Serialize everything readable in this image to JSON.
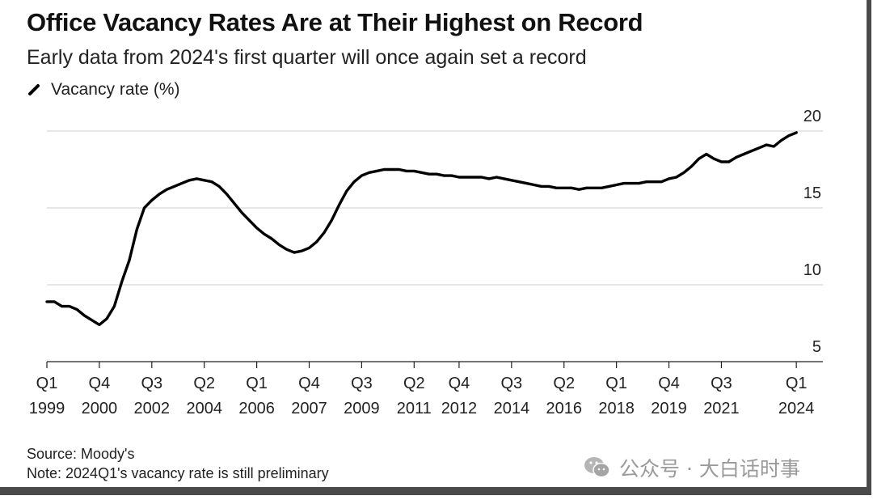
{
  "chart_data": {
    "type": "line",
    "title": "Office Vacancy Rates Are at Their Highest on Record",
    "subtitle": "Early data from 2024's first quarter will once again set a record",
    "legend": "Vacancy rate (%)",
    "xlabel": "",
    "ylabel": "Vacancy rate (%)",
    "ylim": [
      5,
      20
    ],
    "yticks": [
      "5",
      "10",
      "15",
      "20"
    ],
    "grid": "horizontal",
    "x_tick_labels": [
      {
        "q": "Q1",
        "year": "1999",
        "t": 1999.0
      },
      {
        "q": "Q4",
        "year": "2000",
        "t": 2000.75
      },
      {
        "q": "Q3",
        "year": "2002",
        "t": 2002.5
      },
      {
        "q": "Q2",
        "year": "2004",
        "t": 2004.25
      },
      {
        "q": "Q1",
        "year": "2006",
        "t": 2006.0
      },
      {
        "q": "Q4",
        "year": "2007",
        "t": 2007.75
      },
      {
        "q": "Q3",
        "year": "2009",
        "t": 2009.5
      },
      {
        "q": "Q2",
        "year": "2011",
        "t": 2011.25
      },
      {
        "q": "Q4",
        "year": "2012",
        "t": 2012.75
      },
      {
        "q": "Q3",
        "year": "2014",
        "t": 2014.5
      },
      {
        "q": "Q2",
        "year": "2016",
        "t": 2016.25
      },
      {
        "q": "Q1",
        "year": "2018",
        "t": 2018.0
      },
      {
        "q": "Q4",
        "year": "2019",
        "t": 2019.75
      },
      {
        "q": "Q3",
        "year": "2021",
        "t": 2021.5
      },
      {
        "q": "Q1",
        "year": "2024",
        "t": 2024.0
      }
    ],
    "series": [
      {
        "name": "Vacancy rate (%)",
        "color": "#000000",
        "points": [
          [
            1999.0,
            8.9
          ],
          [
            1999.25,
            8.9
          ],
          [
            1999.5,
            8.6
          ],
          [
            1999.75,
            8.6
          ],
          [
            2000.0,
            8.4
          ],
          [
            2000.25,
            8.0
          ],
          [
            2000.5,
            7.7
          ],
          [
            2000.75,
            7.4
          ],
          [
            2001.0,
            7.8
          ],
          [
            2001.25,
            8.6
          ],
          [
            2001.5,
            10.2
          ],
          [
            2001.75,
            11.6
          ],
          [
            2002.0,
            13.6
          ],
          [
            2002.25,
            15.0
          ],
          [
            2002.5,
            15.5
          ],
          [
            2002.75,
            15.9
          ],
          [
            2003.0,
            16.2
          ],
          [
            2003.25,
            16.4
          ],
          [
            2003.5,
            16.6
          ],
          [
            2003.75,
            16.8
          ],
          [
            2004.0,
            16.9
          ],
          [
            2004.25,
            16.8
          ],
          [
            2004.5,
            16.7
          ],
          [
            2004.75,
            16.4
          ],
          [
            2005.0,
            15.9
          ],
          [
            2005.25,
            15.3
          ],
          [
            2005.5,
            14.7
          ],
          [
            2005.75,
            14.2
          ],
          [
            2006.0,
            13.7
          ],
          [
            2006.25,
            13.3
          ],
          [
            2006.5,
            13.0
          ],
          [
            2006.75,
            12.6
          ],
          [
            2007.0,
            12.3
          ],
          [
            2007.25,
            12.1
          ],
          [
            2007.5,
            12.2
          ],
          [
            2007.75,
            12.4
          ],
          [
            2008.0,
            12.8
          ],
          [
            2008.25,
            13.4
          ],
          [
            2008.5,
            14.2
          ],
          [
            2008.75,
            15.2
          ],
          [
            2009.0,
            16.1
          ],
          [
            2009.25,
            16.7
          ],
          [
            2009.5,
            17.1
          ],
          [
            2009.75,
            17.3
          ],
          [
            2010.0,
            17.4
          ],
          [
            2010.25,
            17.5
          ],
          [
            2010.5,
            17.5
          ],
          [
            2010.75,
            17.5
          ],
          [
            2011.0,
            17.4
          ],
          [
            2011.25,
            17.4
          ],
          [
            2011.5,
            17.3
          ],
          [
            2011.75,
            17.2
          ],
          [
            2012.0,
            17.2
          ],
          [
            2012.25,
            17.1
          ],
          [
            2012.5,
            17.1
          ],
          [
            2012.75,
            17.0
          ],
          [
            2013.0,
            17.0
          ],
          [
            2013.25,
            17.0
          ],
          [
            2013.5,
            17.0
          ],
          [
            2013.75,
            16.9
          ],
          [
            2014.0,
            17.0
          ],
          [
            2014.25,
            16.9
          ],
          [
            2014.5,
            16.8
          ],
          [
            2014.75,
            16.7
          ],
          [
            2015.0,
            16.6
          ],
          [
            2015.25,
            16.5
          ],
          [
            2015.5,
            16.4
          ],
          [
            2015.75,
            16.4
          ],
          [
            2016.0,
            16.3
          ],
          [
            2016.25,
            16.3
          ],
          [
            2016.5,
            16.3
          ],
          [
            2016.75,
            16.2
          ],
          [
            2017.0,
            16.3
          ],
          [
            2017.25,
            16.3
          ],
          [
            2017.5,
            16.3
          ],
          [
            2017.75,
            16.4
          ],
          [
            2018.0,
            16.5
          ],
          [
            2018.25,
            16.6
          ],
          [
            2018.5,
            16.6
          ],
          [
            2018.75,
            16.6
          ],
          [
            2019.0,
            16.7
          ],
          [
            2019.25,
            16.7
          ],
          [
            2019.5,
            16.7
          ],
          [
            2019.75,
            16.9
          ],
          [
            2020.0,
            17.0
          ],
          [
            2020.25,
            17.3
          ],
          [
            2020.5,
            17.7
          ],
          [
            2020.75,
            18.2
          ],
          [
            2021.0,
            18.5
          ],
          [
            2021.25,
            18.2
          ],
          [
            2021.5,
            18.0
          ],
          [
            2021.75,
            18.0
          ],
          [
            2022.0,
            18.3
          ],
          [
            2022.25,
            18.5
          ],
          [
            2022.5,
            18.7
          ],
          [
            2022.75,
            18.9
          ],
          [
            2023.0,
            19.1
          ],
          [
            2023.25,
            19.0
          ],
          [
            2023.5,
            19.4
          ],
          [
            2023.75,
            19.7
          ],
          [
            2024.0,
            19.9
          ]
        ]
      }
    ]
  },
  "footer": {
    "source": "Source: Moody's",
    "note": "Note: 2024Q1's vacancy rate is still preliminary"
  },
  "watermark": {
    "text": "公众号 · 大白话时事",
    "icon": "wechat-icon",
    "color": "#9a9a9a"
  }
}
